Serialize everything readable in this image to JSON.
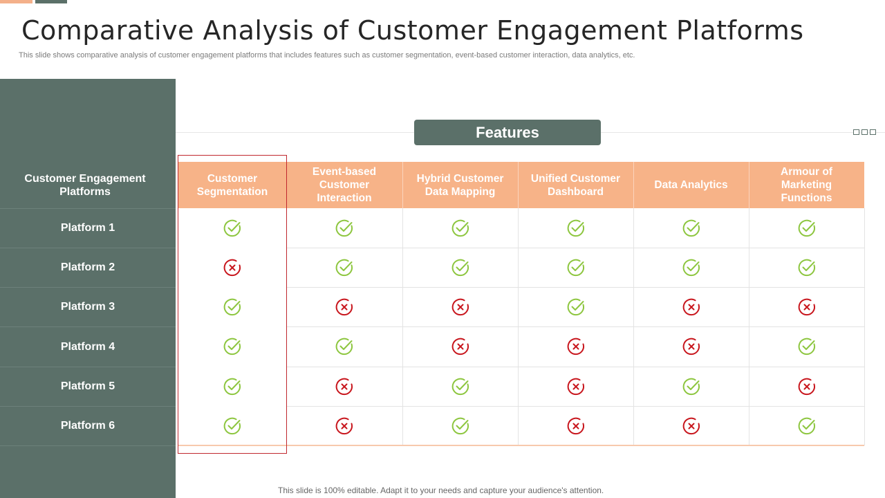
{
  "slide": {
    "title": "Comparative Analysis of Customer Engagement Platforms",
    "subtitle": "This slide shows comparative analysis of customer engagement platforms that includes features such as customer segmentation, event-based customer interaction, data analytics, etc.",
    "footer": "This slide is 100% editable. Adapt it to your needs and capture your audience's attention."
  },
  "table": {
    "features_label": "Features",
    "row_header": "Customer Engagement Platforms",
    "columns": [
      "Customer Segmentation",
      "Event-based Customer Interaction",
      "Hybrid Customer Data Mapping",
      "Unified Customer Dashboard",
      "Data Analytics",
      "Armour of Marketing Functions"
    ],
    "rows": [
      {
        "platform": "Platform 1",
        "values": [
          "yes",
          "yes",
          "yes",
          "yes",
          "yes",
          "yes"
        ]
      },
      {
        "platform": "Platform 2",
        "values": [
          "no",
          "yes",
          "yes",
          "yes",
          "yes",
          "yes"
        ]
      },
      {
        "platform": "Platform 3",
        "values": [
          "yes",
          "no",
          "no",
          "yes",
          "no",
          "no"
        ]
      },
      {
        "platform": "Platform 4",
        "values": [
          "yes",
          "yes",
          "no",
          "no",
          "no",
          "yes"
        ]
      },
      {
        "platform": "Platform 5",
        "values": [
          "yes",
          "no",
          "yes",
          "no",
          "yes",
          "no"
        ]
      },
      {
        "platform": "Platform 6",
        "values": [
          "yes",
          "no",
          "yes",
          "no",
          "no",
          "yes"
        ]
      }
    ],
    "icons": {
      "yes": "check-circle-icon",
      "no": "cross-circle-icon"
    }
  },
  "colors": {
    "sidebar": "#5b7069",
    "header": "#f7b388",
    "check": "#8dc63f",
    "cross": "#c8161d",
    "highlight_border": "#c0272d"
  }
}
